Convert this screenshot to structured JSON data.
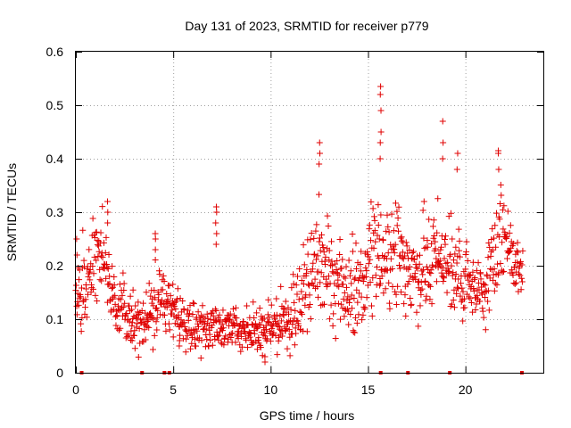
{
  "chart_data": {
    "type": "scatter",
    "title": "Day 131 of 2023, SRMTID for receiver p779",
    "xlabel": "GPS time / hours",
    "ylabel": "SRMTID / TECUs",
    "xlim": [
      0,
      24
    ],
    "ylim": [
      0,
      0.6
    ],
    "x_ticks": [
      0,
      5,
      10,
      15,
      20
    ],
    "y_ticks": [
      0,
      0.1,
      0.2,
      0.3,
      0.4,
      0.5,
      0.6
    ],
    "x_tick_labels": [
      "0",
      "5",
      "10",
      "15",
      "20"
    ],
    "y_tick_labels": [
      "0",
      "0.1",
      "0.2",
      "0.3",
      "0.4",
      "0.5",
      "0.6"
    ],
    "grid": true,
    "marker": "plus",
    "color": "#e00000",
    "series_profile": {
      "hours": [
        0.0,
        0.5,
        1.0,
        1.3,
        1.6,
        2.0,
        2.5,
        3.0,
        3.5,
        4.0,
        4.5,
        5.0,
        6.0,
        7.0,
        8.0,
        9.0,
        9.5,
        10.0,
        11.0,
        11.5,
        12.0,
        12.5,
        13.0,
        13.5,
        14.0,
        14.5,
        15.0,
        15.5,
        16.0,
        16.5,
        17.0,
        17.5,
        18.0,
        18.5,
        19.0,
        19.5,
        20.0,
        20.5,
        21.0,
        21.5,
        22.0,
        22.5
      ],
      "median": [
        0.15,
        0.16,
        0.21,
        0.21,
        0.18,
        0.13,
        0.11,
        0.1,
        0.09,
        0.11,
        0.14,
        0.11,
        0.09,
        0.085,
        0.08,
        0.075,
        0.075,
        0.09,
        0.095,
        0.14,
        0.18,
        0.2,
        0.19,
        0.17,
        0.16,
        0.15,
        0.19,
        0.22,
        0.21,
        0.22,
        0.19,
        0.17,
        0.2,
        0.21,
        0.2,
        0.18,
        0.17,
        0.14,
        0.14,
        0.22,
        0.24,
        0.2
      ],
      "spread": [
        0.05,
        0.04,
        0.05,
        0.05,
        0.05,
        0.03,
        0.03,
        0.03,
        0.03,
        0.04,
        0.05,
        0.03,
        0.03,
        0.03,
        0.025,
        0.025,
        0.03,
        0.03,
        0.035,
        0.05,
        0.06,
        0.07,
        0.06,
        0.05,
        0.05,
        0.05,
        0.06,
        0.06,
        0.05,
        0.06,
        0.06,
        0.05,
        0.05,
        0.06,
        0.05,
        0.06,
        0.05,
        0.03,
        0.04,
        0.05,
        0.05,
        0.04
      ]
    },
    "peaks": [
      {
        "x": 1.65,
        "y": [
          0.28,
          0.3,
          0.32
        ]
      },
      {
        "x": 4.1,
        "y": [
          0.23,
          0.25,
          0.26
        ]
      },
      {
        "x": 7.2,
        "y": [
          0.24,
          0.26,
          0.28,
          0.3,
          0.31
        ]
      },
      {
        "x": 12.5,
        "y": [
          0.39,
          0.41,
          0.43
        ]
      },
      {
        "x": 15.65,
        "y": [
          0.4,
          0.43,
          0.45,
          0.49,
          0.52,
          0.535
        ]
      },
      {
        "x": 18.85,
        "y": [
          0.4,
          0.43,
          0.47
        ]
      },
      {
        "x": 19.6,
        "y": [
          0.38,
          0.41
        ]
      },
      {
        "x": 21.7,
        "y": [
          0.38,
          0.41,
          0.415
        ]
      },
      {
        "x": 0.05,
        "y": [
          0.22,
          0.25
        ]
      },
      {
        "x": 2.9,
        "y": [
          0.06,
          0.065
        ]
      },
      {
        "x": 9.7,
        "y": [
          0.02,
          0.03
        ]
      },
      {
        "x": 5.3,
        "y": [
          0.05,
          0.06
        ]
      }
    ],
    "zero_markers": [
      0.3,
      3.4,
      4.55,
      4.8,
      15.65,
      17.05,
      19.2,
      22.9
    ]
  }
}
